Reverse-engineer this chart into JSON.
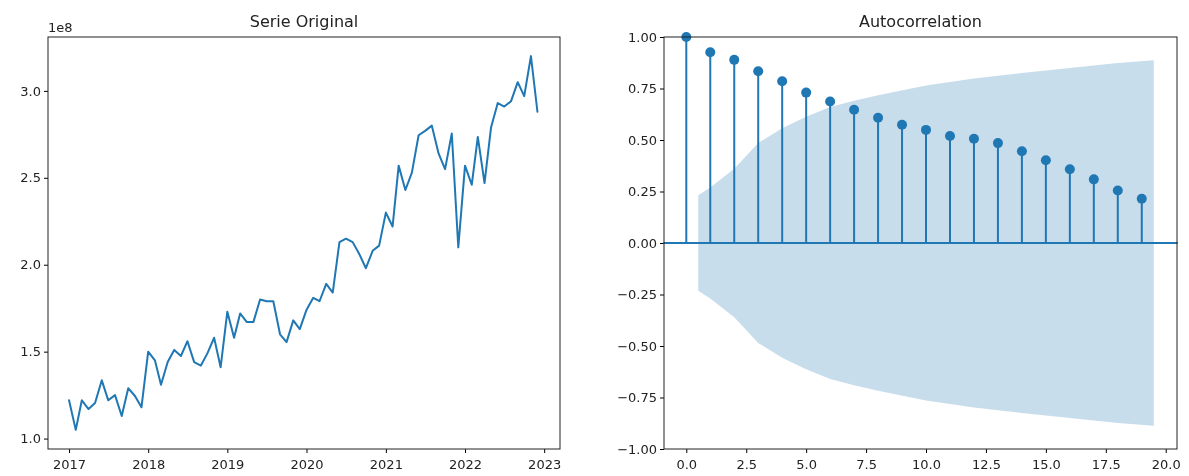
{
  "chart_data": [
    {
      "type": "line",
      "title": "Serie Original",
      "x": [
        "2017-01",
        "2017-02",
        "2017-03",
        "2017-04",
        "2017-05",
        "2017-06",
        "2017-07",
        "2017-08",
        "2017-09",
        "2017-10",
        "2017-11",
        "2017-12",
        "2018-01",
        "2018-02",
        "2018-03",
        "2018-04",
        "2018-05",
        "2018-06",
        "2018-07",
        "2018-08",
        "2018-09",
        "2018-10",
        "2018-11",
        "2018-12",
        "2019-01",
        "2019-02",
        "2019-03",
        "2019-04",
        "2019-05",
        "2019-06",
        "2019-07",
        "2019-08",
        "2019-09",
        "2019-10",
        "2019-11",
        "2019-12",
        "2020-01",
        "2020-02",
        "2020-03",
        "2020-04",
        "2020-05",
        "2020-06",
        "2020-07",
        "2020-08",
        "2020-09",
        "2020-10",
        "2020-11",
        "2020-12",
        "2021-01",
        "2021-02",
        "2021-03",
        "2021-04",
        "2021-05",
        "2021-06",
        "2021-07",
        "2021-08",
        "2021-09",
        "2021-10",
        "2021-11",
        "2021-12",
        "2022-01",
        "2022-02",
        "2022-03",
        "2022-04",
        "2022-05",
        "2022-06",
        "2022-07",
        "2022-08",
        "2022-09",
        "2022-10",
        "2022-11",
        "2022-12"
      ],
      "series": [
        {
          "color": "#1f77b4",
          "values": [
            1.22,
            1.05,
            1.22,
            1.17,
            1.205,
            1.335,
            1.22,
            1.25,
            1.13,
            1.29,
            1.245,
            1.18,
            1.5,
            1.45,
            1.31,
            1.44,
            1.51,
            1.475,
            1.56,
            1.44,
            1.42,
            1.49,
            1.58,
            1.41,
            1.73,
            1.58,
            1.72,
            1.67,
            1.67,
            1.8,
            1.79,
            1.79,
            1.6,
            1.555,
            1.68,
            1.63,
            1.74,
            1.81,
            1.79,
            1.89,
            1.84,
            2.13,
            2.15,
            2.13,
            2.06,
            1.98,
            2.08,
            2.11,
            2.3,
            2.22,
            2.57,
            2.43,
            2.53,
            2.745,
            2.77,
            2.8,
            2.64,
            2.55,
            2.755,
            2.1,
            2.57,
            2.46,
            2.735,
            2.47,
            2.79,
            2.93,
            2.91,
            2.94,
            3.05,
            2.97,
            3.2,
            2.88
          ]
        }
      ],
      "xlim": [
        "2016-09-26",
        "2023-03-15"
      ],
      "xticks": [
        "2017",
        "2018",
        "2019",
        "2020",
        "2021",
        "2022",
        "2023"
      ],
      "ylim": [
        0.94,
        3.31
      ],
      "yticks": [
        {
          "value": 1,
          "label": "1.0"
        },
        {
          "value": 1.5,
          "label": "1.5"
        },
        {
          "value": 2,
          "label": "2.0"
        },
        {
          "value": 2.5,
          "label": "2.5"
        },
        {
          "value": 3,
          "label": "3.0"
        }
      ],
      "annotations": [
        "1e8"
      ]
    },
    {
      "type": "lollipop",
      "title": "Autocorrelation",
      "series": [
        {
          "color": "#1f77b4",
          "marker": "circle",
          "x": [
            0,
            1,
            2,
            3,
            4,
            5,
            6,
            7,
            8,
            9,
            10,
            11,
            12,
            13,
            14,
            15,
            16,
            17,
            18,
            19
          ],
          "values": [
            1.0,
            0.926,
            0.889,
            0.834,
            0.785,
            0.73,
            0.687,
            0.647,
            0.608,
            0.574,
            0.549,
            0.519,
            0.506,
            0.485,
            0.445,
            0.402,
            0.358,
            0.309,
            0.255,
            0.215
          ]
        },
        {
          "type": "line",
          "color": "#1f77b4",
          "x": [
            -0.93,
            0.5,
            1,
            2,
            3,
            4,
            5,
            6,
            7,
            8,
            10,
            12,
            14,
            16,
            18,
            19.5,
            20.47
          ],
          "values": [
            0,
            0,
            0,
            0,
            0,
            0,
            0,
            0,
            0,
            0,
            0,
            0,
            0,
            0,
            0,
            0,
            0
          ],
          "upper": [
            null,
            0.232,
            0.27,
            0.36,
            0.485,
            0.557,
            0.613,
            0.66,
            0.69,
            0.717,
            0.764,
            0.798,
            0.825,
            0.85,
            0.874,
            0.887,
            null
          ],
          "lower": [
            null,
            -0.232,
            -0.27,
            -0.36,
            -0.485,
            -0.557,
            -0.613,
            -0.66,
            -0.69,
            -0.717,
            -0.764,
            -0.798,
            -0.825,
            -0.85,
            -0.874,
            -0.887,
            null
          ]
        }
      ],
      "xlim": [
        -0.93,
        20.47
      ],
      "xticks": [
        {
          "value": 0,
          "label": "0.0"
        },
        2.5,
        {
          "value": 5,
          "label": "5.0"
        },
        7.5,
        {
          "value": 10,
          "label": "10.0"
        },
        12.5,
        {
          "value": 15,
          "label": "15.0"
        },
        17.5,
        {
          "value": 20,
          "label": "20.0"
        }
      ],
      "ylim": [
        -1,
        1
      ],
      "yticks": [
        {
          "value": -1,
          "label": "−1.00"
        },
        {
          "value": -0.75,
          "label": "−0.75"
        },
        {
          "value": -0.5,
          "label": "−0.50"
        },
        {
          "value": -0.25,
          "label": "−0.25"
        },
        {
          "value": 0,
          "label": "0.00"
        },
        {
          "value": 0.25,
          "label": "0.25"
        },
        {
          "value": 0.5,
          "label": "0.50"
        },
        {
          "value": 0.75,
          "label": "0.75"
        },
        {
          "value": 1,
          "label": "1.00"
        }
      ]
    }
  ]
}
